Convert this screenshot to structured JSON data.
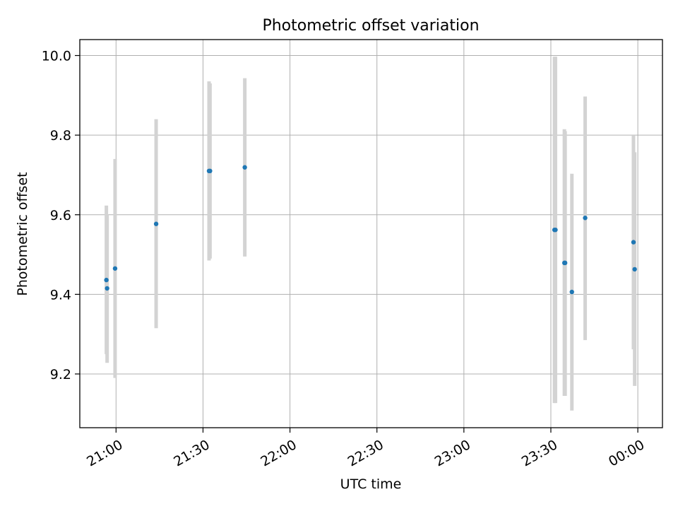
{
  "chart_data": {
    "type": "scatter",
    "title": "Photometric offset variation",
    "xlabel": "UTC time",
    "ylabel": "Photometric offset",
    "x_ticks": [
      "21:00",
      "21:30",
      "22:00",
      "22:30",
      "23:00",
      "23:30",
      "00:00"
    ],
    "y_ticks": [
      "9.2",
      "9.4",
      "9.6",
      "9.8",
      "10.0"
    ],
    "xlim": [
      "20:47:30",
      "00:08:30"
    ],
    "ylim": [
      9.065,
      10.04
    ],
    "grid": true,
    "marker_color": "#1f77b4",
    "errorbar_color": "#d3d3d3",
    "points": [
      {
        "time": "20:56:40",
        "y": 9.436,
        "yerr_low": 9.25,
        "yerr_high": 9.623
      },
      {
        "time": "20:56:55",
        "y": 9.415,
        "yerr_low": 9.228,
        "yerr_high": 9.6
      },
      {
        "time": "20:59:40",
        "y": 9.465,
        "yerr_low": 9.19,
        "yerr_high": 9.74
      },
      {
        "time": "21:13:50",
        "y": 9.577,
        "yerr_low": 9.315,
        "yerr_high": 9.84
      },
      {
        "time": "21:32:05",
        "y": 9.71,
        "yerr_low": 9.485,
        "yerr_high": 9.935
      },
      {
        "time": "21:32:25",
        "y": 9.71,
        "yerr_low": 9.49,
        "yerr_high": 9.93
      },
      {
        "time": "21:44:25",
        "y": 9.719,
        "yerr_low": 9.495,
        "yerr_high": 9.943
      },
      {
        "time": "23:31:15",
        "y": 9.562,
        "yerr_low": 9.127,
        "yerr_high": 9.997
      },
      {
        "time": "23:31:35",
        "y": 9.562,
        "yerr_low": 9.127,
        "yerr_high": 9.997
      },
      {
        "time": "23:34:40",
        "y": 9.479,
        "yerr_low": 9.145,
        "yerr_high": 9.815
      },
      {
        "time": "23:34:55",
        "y": 9.479,
        "yerr_low": 9.145,
        "yerr_high": 9.81
      },
      {
        "time": "23:37:15",
        "y": 9.406,
        "yerr_low": 9.108,
        "yerr_high": 9.703
      },
      {
        "time": "23:41:50",
        "y": 9.592,
        "yerr_low": 9.285,
        "yerr_high": 9.897
      },
      {
        "time": "23:58:30",
        "y": 9.531,
        "yerr_low": 9.262,
        "yerr_high": 9.8
      },
      {
        "time": "23:58:55",
        "y": 9.463,
        "yerr_low": 9.17,
        "yerr_high": 9.757
      }
    ]
  }
}
